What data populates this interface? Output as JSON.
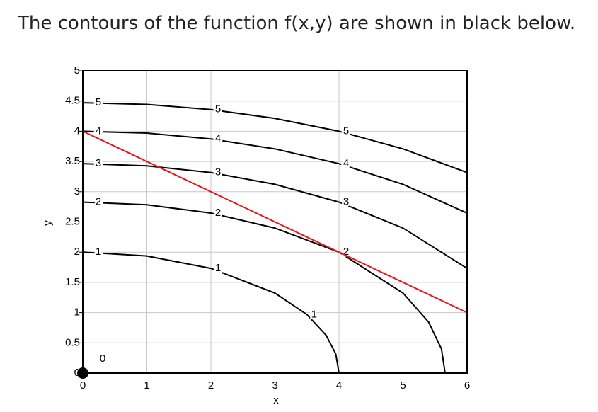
{
  "question": "The contours of the function f(x,y) are shown in black below.",
  "chart_data": {
    "type": "contour",
    "xlabel": "x",
    "ylabel": "y",
    "xlim": [
      0,
      6
    ],
    "ylim": [
      0,
      5
    ],
    "xticks": [
      0,
      1,
      2,
      3,
      4,
      5,
      6
    ],
    "yticks": [
      0,
      0.5,
      1,
      1.5,
      2,
      2.5,
      3,
      3.5,
      4,
      4.5,
      5
    ],
    "grid": true,
    "series": [
      {
        "name": "0",
        "color": "#000000",
        "x": [
          0
        ],
        "y": [
          0
        ]
      },
      {
        "name": "1",
        "color": "#000000",
        "x": [
          0,
          1,
          2,
          3,
          3.5,
          3.8,
          3.95,
          4
        ],
        "y": [
          2,
          1.936,
          1.732,
          1.323,
          0.968,
          0.624,
          0.316,
          0
        ]
      },
      {
        "name": "2",
        "color": "#000000",
        "x": [
          0,
          1,
          2,
          3,
          4,
          5,
          5.4,
          5.6,
          5.657
        ],
        "y": [
          2.828,
          2.784,
          2.646,
          2.398,
          2,
          1.323,
          0.843,
          0.4,
          0
        ]
      },
      {
        "name": "3",
        "color": "#000000",
        "x": [
          0,
          1,
          2,
          3,
          4,
          5,
          6
        ],
        "y": [
          3.464,
          3.428,
          3.317,
          3.122,
          2.828,
          2.398,
          1.732
        ]
      },
      {
        "name": "4",
        "color": "#000000",
        "x": [
          0,
          1,
          2,
          3,
          4,
          5,
          6
        ],
        "y": [
          4,
          3.969,
          3.873,
          3.708,
          3.464,
          3.122,
          2.646
        ]
      },
      {
        "name": "5",
        "color": "#000000",
        "x": [
          0,
          1,
          2,
          3,
          4,
          5,
          6
        ],
        "y": [
          4.472,
          4.444,
          4.359,
          4.213,
          4,
          3.708,
          3.317
        ]
      }
    ],
    "line": {
      "color": "#e8161b",
      "x": [
        0,
        6
      ],
      "y": [
        4,
        1
      ]
    }
  }
}
